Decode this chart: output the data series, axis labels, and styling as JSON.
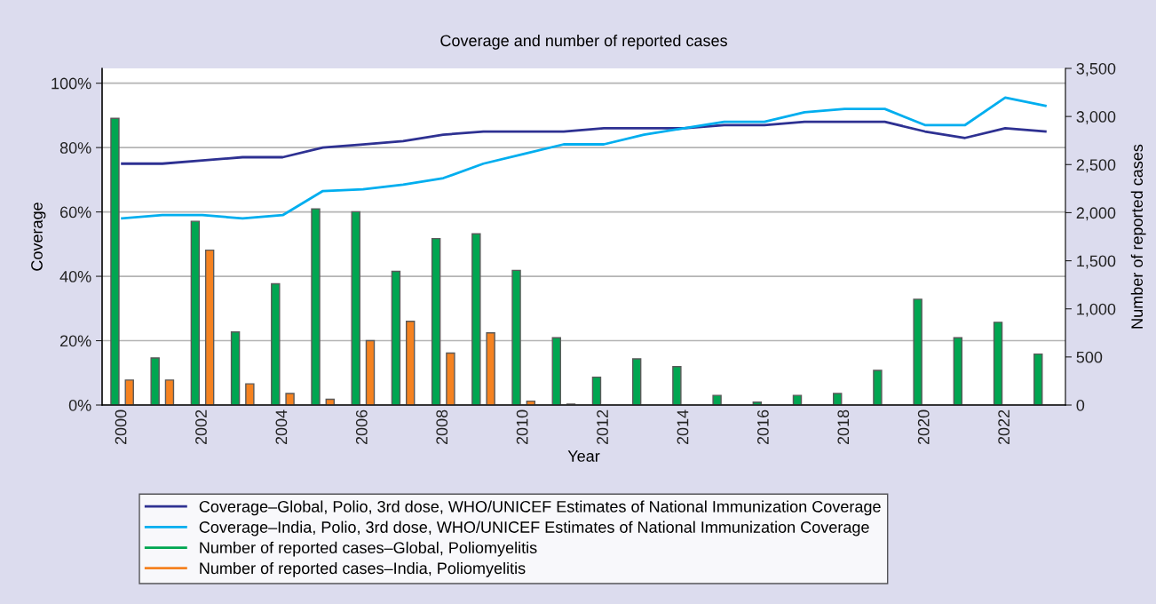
{
  "chart_data": {
    "type": "bar",
    "title": "Coverage and number of reported cases",
    "xlabel": "Year",
    "ylabel": "Coverage",
    "y2label": "Number of reported cases",
    "categories": [
      "2000",
      null,
      "2002",
      null,
      "2004",
      null,
      "2006",
      null,
      "2008",
      null,
      "2010",
      null,
      "2012",
      null,
      "2014",
      null,
      "2016",
      null,
      "2018",
      null,
      "2020",
      null,
      "2022",
      null
    ],
    "series": [
      {
        "name": "Coverage–Global, Polio, 3rd dose, WHO/UNICEF Estimates of National Immunization Coverage",
        "type": "line",
        "color": "#2e3192",
        "values": [
          75,
          75,
          76,
          77,
          77,
          80,
          81,
          82,
          84,
          85,
          85,
          85,
          86,
          86,
          86,
          87,
          87,
          88,
          88,
          88,
          85,
          83,
          86,
          85
        ]
      },
      {
        "name": "Coverage–India, Polio, 3rd dose, WHO/UNICEF Estimates of National Immunization Coverage",
        "type": "line",
        "color": "#00aeef",
        "values": [
          58,
          59,
          59,
          58,
          59,
          66.5,
          67,
          68.5,
          70.5,
          75,
          78,
          81,
          81,
          84,
          86,
          88,
          88,
          91,
          92,
          92,
          87,
          87,
          95.5,
          93
        ]
      },
      {
        "name": "Number of reported cases–Global, Poliomyelitis",
        "axis": "y2",
        "color": "#00a651",
        "values": [
          2980,
          490,
          1910,
          760,
          1260,
          2040,
          2010,
          1390,
          1730,
          1780,
          1400,
          700,
          290,
          480,
          400,
          100,
          30,
          100,
          120,
          360,
          1100,
          700,
          860,
          530
        ]
      },
      {
        "name": "Number of reported cases–India, Poliomyelitis",
        "axis": "y2",
        "color": "#f58220",
        "values": [
          260,
          260,
          1610,
          220,
          120,
          60,
          670,
          870,
          540,
          750,
          40,
          10,
          null,
          null,
          null,
          null,
          null,
          null,
          null,
          null,
          null,
          null,
          null,
          null
        ]
      }
    ],
    "ylim": [
      0,
      104.6
    ],
    "yticks": [
      {
        "value": 0,
        "label": "0%"
      },
      {
        "value": 20,
        "label": "20%"
      },
      {
        "value": 40,
        "label": "40%"
      },
      {
        "value": 60,
        "label": "60%"
      },
      {
        "value": 80,
        "label": "80%"
      },
      {
        "value": 100,
        "label": "100%"
      }
    ],
    "y2lim": [
      0,
      3500
    ],
    "y2ticks": [
      0,
      500,
      {
        "value": 1000,
        "label": "1,000"
      },
      {
        "value": 1500,
        "label": "1,500"
      },
      {
        "value": 2000,
        "label": "2,000"
      },
      {
        "value": 2500,
        "label": "2,500"
      },
      {
        "value": 3000,
        "label": "3,000"
      },
      {
        "value": 3500,
        "label": "3,500"
      }
    ],
    "grid": "y",
    "legend": "bottom"
  }
}
